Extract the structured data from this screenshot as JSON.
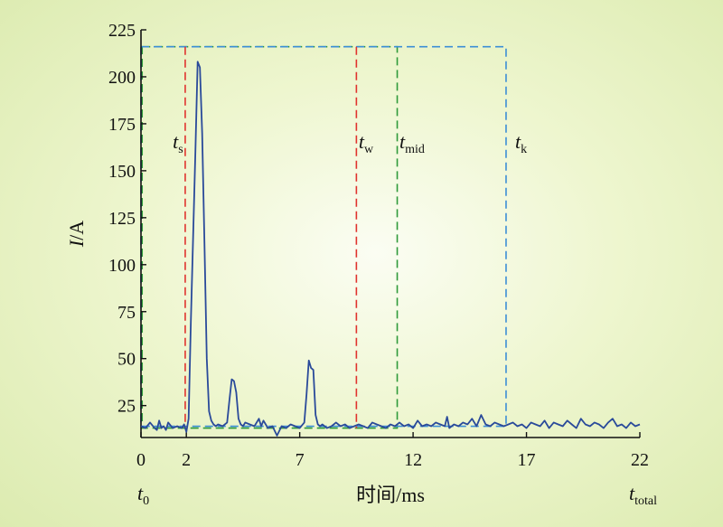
{
  "chart_data": {
    "type": "line",
    "ylabel_var": "I",
    "ylabel_unit": "/A",
    "xlabel": "时间/ms",
    "xlim": [
      0,
      22
    ],
    "ylim": [
      8,
      225
    ],
    "xticks": [
      0,
      2,
      7,
      12,
      17,
      22
    ],
    "yticks": [
      25,
      50,
      75,
      100,
      125,
      150,
      175,
      200,
      225
    ],
    "colors": {
      "signal": "#2a4a9a",
      "red": "#e0332e",
      "green": "#2f9a3a",
      "blue": "#3c8ed6"
    },
    "bottom_labels": [
      {
        "var": "t",
        "sub": "0",
        "x": 0
      },
      {
        "var": "t",
        "sub": "total",
        "x": 22
      }
    ],
    "markers": [
      {
        "var": "t",
        "sub": "s",
        "x": 1.95,
        "color": "red",
        "label_x": 1.4
      },
      {
        "var": "t",
        "sub": "w",
        "x": 9.5,
        "color": "red",
        "label_x": 9.6
      },
      {
        "var": "t",
        "sub": "mid",
        "x": 11.3,
        "color": "green",
        "label_x": 11.4
      },
      {
        "var": "t",
        "sub": "k",
        "x": 16.1,
        "color": "blue",
        "label_x": 16.5
      }
    ],
    "marker_label_y": 162,
    "rects": [
      {
        "x0": 0.05,
        "x1": 11.3,
        "y0": 13,
        "y1": 216,
        "color": "green"
      },
      {
        "x0": 0.0,
        "x1": 16.1,
        "y0": 14,
        "y1": 216,
        "color": "blue"
      }
    ],
    "series": [
      {
        "x": [
          0,
          0.2,
          0.4,
          0.6,
          0.7,
          0.8,
          0.9,
          1.0,
          1.1,
          1.2,
          1.4,
          1.6,
          1.8,
          1.9,
          2.0,
          2.1,
          2.2,
          2.4,
          2.5,
          2.6,
          2.7,
          2.8,
          2.9,
          3.0,
          3.1,
          3.2,
          3.3,
          3.4,
          3.6,
          3.8,
          3.9,
          4.0,
          4.1,
          4.2,
          4.3,
          4.4,
          4.5,
          4.6,
          4.8,
          5.0,
          5.2,
          5.3,
          5.4,
          5.5,
          5.6,
          5.8,
          6.0,
          6.2,
          6.4,
          6.6,
          6.8,
          7.0,
          7.2,
          7.3,
          7.4,
          7.5,
          7.6,
          7.7,
          7.8,
          7.9,
          8.0,
          8.2,
          8.4,
          8.6,
          8.8,
          9.0,
          9.2,
          9.4,
          9.6,
          9.8,
          10.0,
          10.2,
          10.4,
          10.6,
          10.8,
          11.0,
          11.2,
          11.4,
          11.6,
          11.8,
          12.0,
          12.2,
          12.4,
          12.6,
          12.8,
          13.0,
          13.2,
          13.4,
          13.5,
          13.6,
          13.8,
          14.0,
          14.2,
          14.4,
          14.6,
          14.8,
          15.0,
          15.2,
          15.4,
          15.6,
          15.8,
          16.0,
          16.2,
          16.4,
          16.6,
          16.8,
          17.0,
          17.2,
          17.4,
          17.6,
          17.8,
          18.0,
          18.2,
          18.4,
          18.6,
          18.8,
          19.0,
          19.2,
          19.4,
          19.6,
          19.8,
          20.0,
          20.2,
          20.4,
          20.6,
          20.8,
          21.0,
          21.2,
          21.4,
          21.6,
          21.8,
          22.0
        ],
        "y": [
          14,
          13,
          16,
          13,
          12,
          17,
          13,
          14,
          12,
          16,
          13,
          14,
          13,
          15,
          11,
          18,
          70,
          160,
          208,
          205,
          170,
          110,
          50,
          22,
          17,
          15,
          14,
          15,
          14,
          16,
          28,
          39,
          38,
          32,
          18,
          15,
          14,
          16,
          15,
          14,
          18,
          14,
          17,
          15,
          13,
          14,
          9,
          14,
          13,
          15,
          14,
          13,
          16,
          31,
          49,
          45,
          44,
          20,
          15,
          14,
          15,
          13,
          14,
          16,
          14,
          15,
          13,
          14,
          15,
          14,
          13,
          16,
          15,
          14,
          13,
          15,
          14,
          16,
          14,
          15,
          13,
          17,
          14,
          15,
          14,
          16,
          15,
          14,
          19,
          13,
          15,
          14,
          16,
          15,
          18,
          14,
          20,
          15,
          14,
          16,
          15,
          14,
          15,
          16,
          14,
          15,
          13,
          16,
          15,
          14,
          17,
          13,
          16,
          15,
          14,
          17,
          15,
          13,
          18,
          15,
          14,
          16,
          15,
          13,
          16,
          18,
          14,
          15,
          13,
          16,
          14,
          15
        ]
      }
    ]
  }
}
